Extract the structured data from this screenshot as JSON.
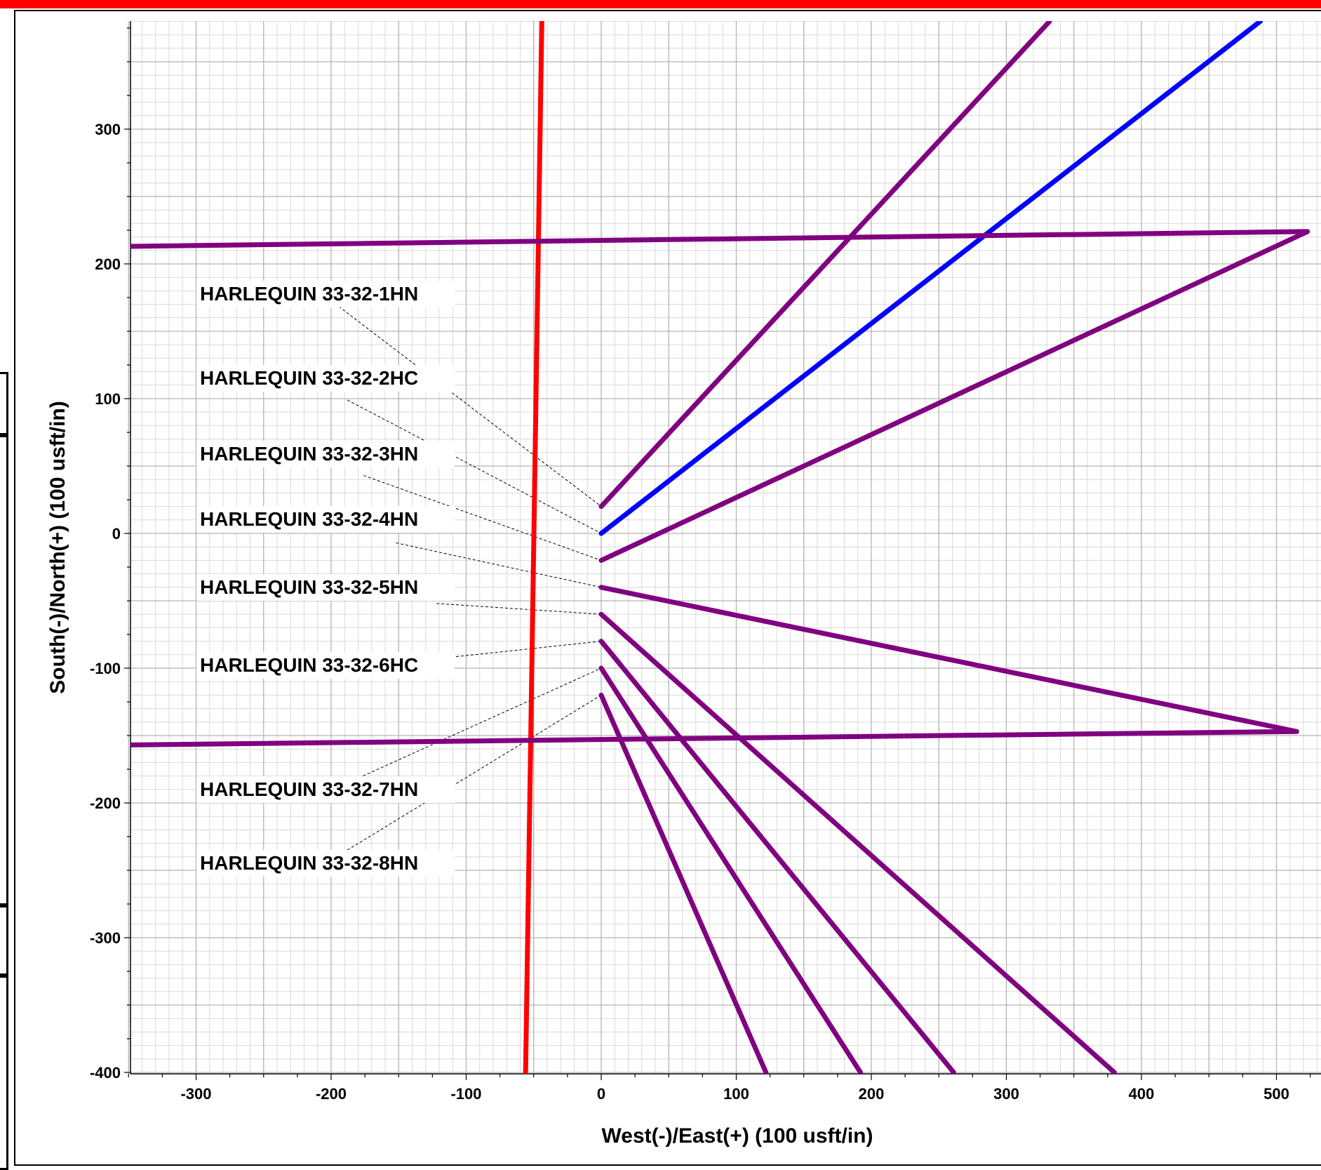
{
  "chart_data": {
    "type": "line",
    "title": "",
    "xlabel": "West(-)/East(+) (100 usft/in)",
    "ylabel": "South(-)/North(+) (100 usft/in)",
    "xlim": [
      -350,
      530
    ],
    "ylim": [
      -400,
      380
    ],
    "xticks": [
      -300,
      -200,
      -100,
      0,
      100,
      200,
      300,
      400,
      500
    ],
    "yticks": [
      -400,
      -300,
      -200,
      -100,
      0,
      100,
      200,
      300
    ],
    "grid": true,
    "colors": {
      "primary": "#0000ff",
      "offset": "#800080",
      "reference": "#ff0000"
    },
    "series": [
      {
        "name": "",
        "color": "#ff0000",
        "x": [
          -44,
          -56
        ],
        "y": [
          380,
          -400
        ]
      },
      {
        "name": "",
        "color": "#800080",
        "x": [
          0,
          332
        ],
        "y": [
          20,
          380
        ]
      },
      {
        "name": "",
        "color": "#0000ff",
        "x": [
          0,
          488
        ],
        "y": [
          0,
          380
        ]
      },
      {
        "name": "",
        "color": "#800080",
        "x": [
          0,
          523,
          -350
        ],
        "y": [
          -20,
          224,
          213
        ]
      },
      {
        "name": "",
        "color": "#800080",
        "x": [
          0,
          515,
          -350
        ],
        "y": [
          -40,
          -147,
          -157
        ]
      },
      {
        "name": "",
        "color": "#800080",
        "x": [
          0,
          380
        ],
        "y": [
          -60,
          -400
        ]
      },
      {
        "name": "",
        "color": "#800080",
        "x": [
          0,
          261
        ],
        "y": [
          -80,
          -400
        ]
      },
      {
        "name": "",
        "color": "#800080",
        "x": [
          0,
          192
        ],
        "y": [
          -100,
          -400
        ]
      },
      {
        "name": "",
        "color": "#800080",
        "x": [
          0,
          122
        ],
        "y": [
          -120,
          -400
        ]
      }
    ],
    "annotations": [
      {
        "text": "HARLEQUIN 33-32-1HN",
        "anchor_x": -203,
        "anchor_y": 175,
        "target_x": 0,
        "target_y": 20
      },
      {
        "text": "HARLEQUIN 33-32-2HC",
        "anchor_x": -188,
        "anchor_y": 99,
        "target_x": 0,
        "target_y": 0
      },
      {
        "text": "HARLEQUIN 33-32-3HN",
        "anchor_x": -176,
        "anchor_y": 43,
        "target_x": 0,
        "target_y": -20
      },
      {
        "text": "HARLEQUIN 33-32-4HN",
        "anchor_x": -152,
        "anchor_y": -7,
        "target_x": 0,
        "target_y": -40
      },
      {
        "text": "HARLEQUIN 33-32-5HN",
        "anchor_x": -122,
        "anchor_y": -52,
        "target_x": 0,
        "target_y": -60
      },
      {
        "text": "HARLEQUIN 33-32-6HC",
        "anchor_x": -122,
        "anchor_y": -93,
        "target_x": 0,
        "target_y": -80
      },
      {
        "text": "HARLEQUIN 33-32-7HN",
        "anchor_x": -183,
        "anchor_y": -183,
        "target_x": 0,
        "target_y": -100
      },
      {
        "text": "HARLEQUIN 33-32-8HN",
        "anchor_x": -188,
        "anchor_y": -235,
        "target_x": 0,
        "target_y": -120
      }
    ]
  }
}
